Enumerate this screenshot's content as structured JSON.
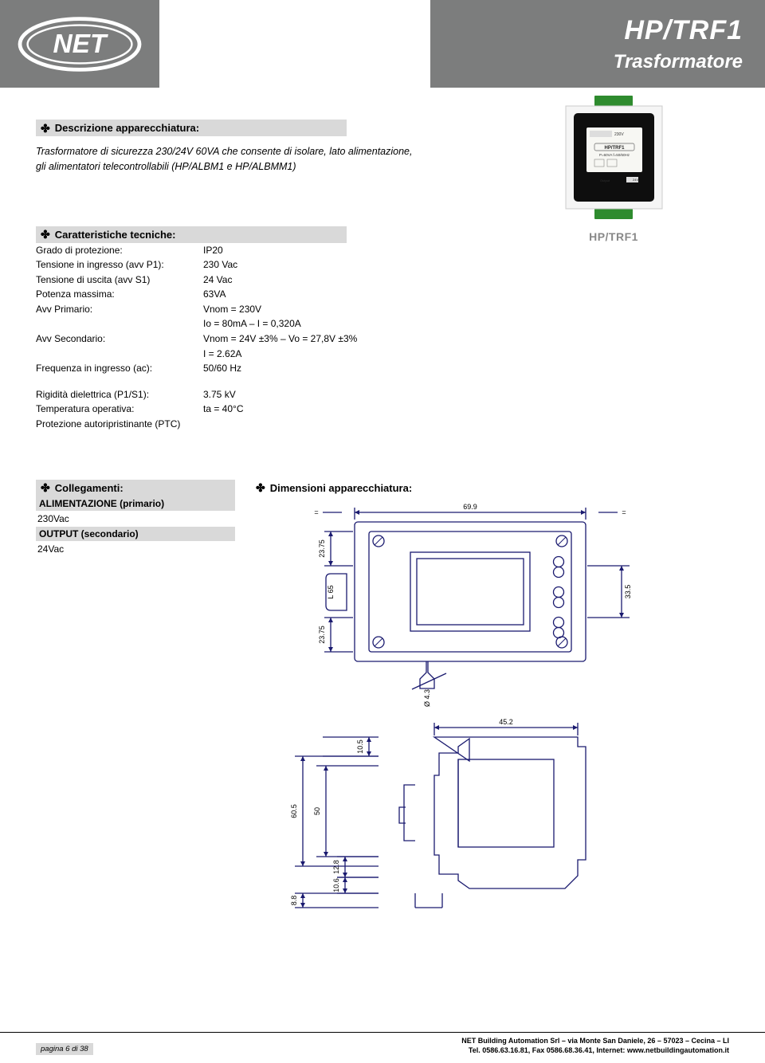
{
  "header": {
    "model": "HP/TRF1",
    "category": "Trasformatore",
    "product_img_label": "HP/TRF1"
  },
  "sections": {
    "description_title": "Descrizione apparecchiatura:",
    "description_body": "Trasformatore di sicurezza 230/24V 60VA che consente di isolare, lato alimentazione, gli alimentatori telecontrollabili (HP/ALBM1 e HP/ALBMM1)",
    "specs_title": "Caratteristiche tecniche:",
    "connections_title": "Collegamenti:",
    "dimensions_title": "Dimensioni apparecchiatura:"
  },
  "specs": [
    {
      "label": "Grado di protezione:",
      "value": "IP20"
    },
    {
      "label": "Tensione in ingresso (avv P1):",
      "value": "230 Vac"
    },
    {
      "label": "Tensione di uscita (avv S1)",
      "value": "24 Vac"
    },
    {
      "label": "Potenza massima:",
      "value": "63VA"
    },
    {
      "label": "Avv Primario:",
      "value": "Vnom = 230V"
    },
    {
      "label": "",
      "value": "Io = 80mA – I = 0,320A"
    },
    {
      "label": "Avv Secondario:",
      "value": "Vnom = 24V ±3% – Vo = 27,8V ±3%"
    },
    {
      "label": "",
      "value": "I = 2.62A"
    },
    {
      "label": "Frequenza in ingresso (ac):",
      "value": "50/60 Hz"
    }
  ],
  "specs2": [
    {
      "label": "Rigidità dielettrica (P1/S1):",
      "value": "3.75 kV"
    },
    {
      "label": "Temperatura operativa:",
      "value": "ta = 40°C"
    },
    {
      "label": "Protezione autoripristinante (PTC)",
      "value": ""
    }
  ],
  "connections": {
    "row1_label": "ALIMENTAZIONE (primario)",
    "row1_value": "230Vac",
    "row2_label": "OUTPUT  (secondario)",
    "row2_value": "24Vac"
  },
  "footer": {
    "page": "pagina 6 di 38",
    "line1": "NET Building Automation Srl – via Monte San Daniele, 26 – 57023 – Cecina – LI",
    "line2": "Tel. 0586.63.16.81, Fax 0586.68.36.41, Internet: www.netbuildingautomation.it"
  },
  "drawing": {
    "top": {
      "width_dim": "69.9",
      "left_dim": "23.75",
      "right_dim": "33.5",
      "center_h": "L 65",
      "lower_left_dim": "23.75",
      "bottom_tab": "Ø 4.3"
    },
    "side": {
      "top_dim": "45.2",
      "h1": "10.5",
      "h2": "60.5",
      "h3": "50",
      "h4": "12.8",
      "h5": "10.6",
      "h6": "8.8"
    },
    "line_color": "#1a1a6f",
    "text_color": "#000000",
    "stroke_width": 1.3
  }
}
